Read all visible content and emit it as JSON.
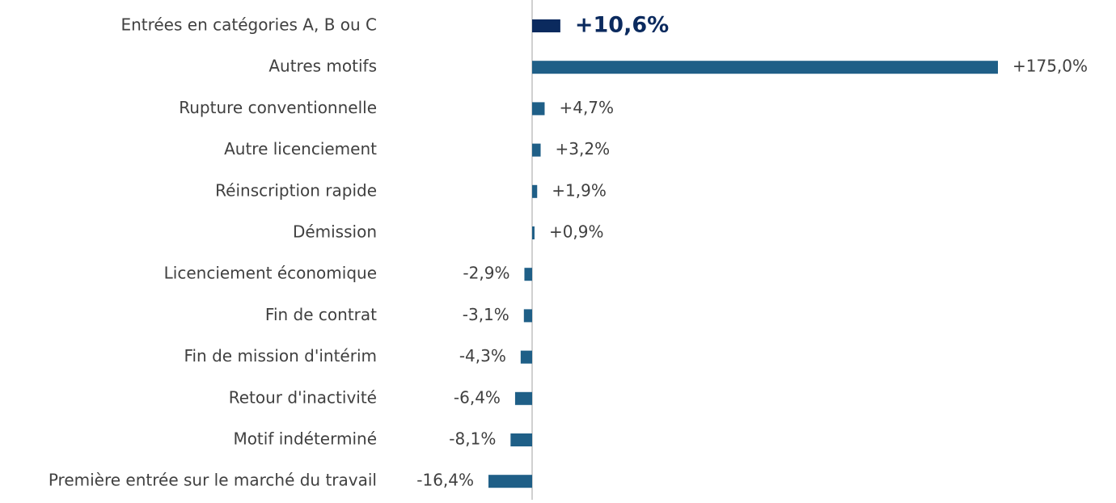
{
  "chart_data": {
    "type": "hbar",
    "categories": [
      "Entrées en catégories A, B ou C",
      "Autres motifs",
      "Rupture conventionnelle",
      "Autre licenciement",
      "Réinscription rapide",
      "Démission",
      "Licenciement économique",
      "Fin de contrat",
      "Fin de mission d'intérim",
      "Retour d'inactivité",
      "Motif indéterminé",
      "Première entrée sur le marché du travail"
    ],
    "values": [
      10.6,
      175.0,
      4.7,
      3.2,
      1.9,
      0.9,
      -2.9,
      -3.1,
      -4.3,
      -6.4,
      -8.1,
      -16.4
    ],
    "value_labels": [
      "+10,6%",
      "+175,0%",
      "+4,7%",
      "+3,2%",
      "+1,9%",
      "+0,9%",
      "-2,9%",
      "-3,1%",
      "-4,3%",
      "-6,4%",
      "-8,1%",
      "-16,4%"
    ],
    "colors": [
      "#0b2a5e",
      "#1f5f87",
      "#1f5f87",
      "#1f5f87",
      "#1f5f87",
      "#1f5f87",
      "#1f5f87",
      "#1f5f87",
      "#1f5f87",
      "#1f5f87",
      "#1f5f87",
      "#1f5f87"
    ]
  }
}
